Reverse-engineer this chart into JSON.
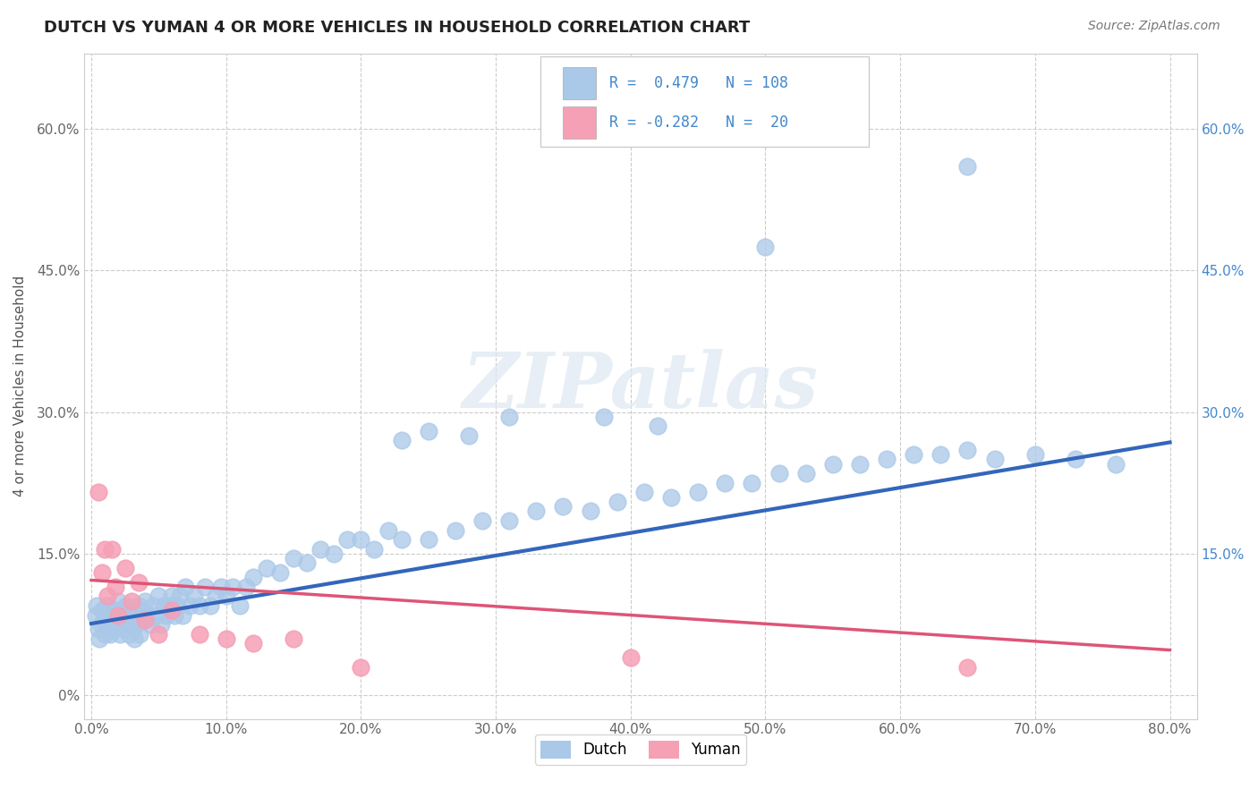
{
  "title": "DUTCH VS YUMAN 4 OR MORE VEHICLES IN HOUSEHOLD CORRELATION CHART",
  "source": "Source: ZipAtlas.com",
  "ylabel": "4 or more Vehicles in Household",
  "xlim": [
    -0.005,
    0.82
  ],
  "ylim": [
    -0.025,
    0.68
  ],
  "xticks": [
    0.0,
    0.1,
    0.2,
    0.3,
    0.4,
    0.5,
    0.6,
    0.7,
    0.8
  ],
  "xticklabels": [
    "0.0%",
    "10.0%",
    "20.0%",
    "30.0%",
    "40.0%",
    "50.0%",
    "60.0%",
    "70.0%",
    "80.0%"
  ],
  "yticks": [
    0.0,
    0.15,
    0.3,
    0.45,
    0.6
  ],
  "yticklabels": [
    "0%",
    "15.0%",
    "30.0%",
    "45.0%",
    "60.0%"
  ],
  "y_right_labels": [
    "",
    "15.0%",
    "30.0%",
    "45.0%",
    "60.0%"
  ],
  "dutch_color": "#aac8e8",
  "yuman_color": "#f5a0b5",
  "dutch_line_color": "#3366bb",
  "yuman_line_color": "#dd5577",
  "dutch_R": 0.479,
  "dutch_N": 108,
  "yuman_R": -0.282,
  "yuman_N": 20,
  "legend_color": "#4488cc",
  "background_color": "#ffffff",
  "grid_color": "#cccccc",
  "watermark_text": "ZIPatlas",
  "dutch_line_x0": 0.0,
  "dutch_line_y0": 0.076,
  "dutch_line_x1": 0.8,
  "dutch_line_y1": 0.268,
  "yuman_line_x0": 0.0,
  "yuman_line_y0": 0.122,
  "yuman_line_x1": 0.8,
  "yuman_line_y1": 0.048,
  "dutch_x": [
    0.003,
    0.004,
    0.005,
    0.006,
    0.007,
    0.008,
    0.009,
    0.01,
    0.011,
    0.012,
    0.013,
    0.014,
    0.015,
    0.016,
    0.017,
    0.018,
    0.019,
    0.02,
    0.021,
    0.022,
    0.023,
    0.024,
    0.025,
    0.026,
    0.027,
    0.028,
    0.029,
    0.03,
    0.031,
    0.032,
    0.033,
    0.034,
    0.035,
    0.036,
    0.037,
    0.038,
    0.04,
    0.042,
    0.044,
    0.046,
    0.048,
    0.05,
    0.052,
    0.054,
    0.056,
    0.058,
    0.06,
    0.062,
    0.064,
    0.066,
    0.068,
    0.07,
    0.073,
    0.076,
    0.08,
    0.084,
    0.088,
    0.092,
    0.096,
    0.1,
    0.105,
    0.11,
    0.115,
    0.12,
    0.13,
    0.14,
    0.15,
    0.16,
    0.17,
    0.18,
    0.19,
    0.2,
    0.21,
    0.22,
    0.23,
    0.25,
    0.27,
    0.29,
    0.31,
    0.33,
    0.35,
    0.37,
    0.39,
    0.41,
    0.43,
    0.45,
    0.47,
    0.49,
    0.51,
    0.53,
    0.55,
    0.57,
    0.59,
    0.61,
    0.63,
    0.65,
    0.67,
    0.7,
    0.73,
    0.76,
    0.5,
    0.65,
    0.38,
    0.42,
    0.28,
    0.31,
    0.25,
    0.23
  ],
  "dutch_y": [
    0.085,
    0.095,
    0.07,
    0.06,
    0.075,
    0.09,
    0.08,
    0.065,
    0.095,
    0.085,
    0.075,
    0.065,
    0.08,
    0.07,
    0.09,
    0.075,
    0.085,
    0.1,
    0.065,
    0.09,
    0.08,
    0.07,
    0.085,
    0.095,
    0.075,
    0.065,
    0.08,
    0.09,
    0.07,
    0.06,
    0.075,
    0.085,
    0.095,
    0.065,
    0.08,
    0.09,
    0.1,
    0.085,
    0.075,
    0.095,
    0.085,
    0.105,
    0.075,
    0.095,
    0.085,
    0.095,
    0.105,
    0.085,
    0.095,
    0.105,
    0.085,
    0.115,
    0.095,
    0.105,
    0.095,
    0.115,
    0.095,
    0.105,
    0.115,
    0.105,
    0.115,
    0.095,
    0.115,
    0.125,
    0.135,
    0.13,
    0.145,
    0.14,
    0.155,
    0.15,
    0.165,
    0.165,
    0.155,
    0.175,
    0.165,
    0.165,
    0.175,
    0.185,
    0.185,
    0.195,
    0.2,
    0.195,
    0.205,
    0.215,
    0.21,
    0.215,
    0.225,
    0.225,
    0.235,
    0.235,
    0.245,
    0.245,
    0.25,
    0.255,
    0.255,
    0.26,
    0.25,
    0.255,
    0.25,
    0.245,
    0.475,
    0.56,
    0.295,
    0.285,
    0.275,
    0.295,
    0.28,
    0.27
  ],
  "yuman_x": [
    0.005,
    0.008,
    0.01,
    0.012,
    0.015,
    0.018,
    0.02,
    0.025,
    0.03,
    0.035,
    0.04,
    0.05,
    0.06,
    0.08,
    0.1,
    0.12,
    0.15,
    0.2,
    0.4,
    0.65
  ],
  "yuman_y": [
    0.215,
    0.13,
    0.155,
    0.105,
    0.155,
    0.115,
    0.085,
    0.135,
    0.1,
    0.12,
    0.08,
    0.065,
    0.09,
    0.065,
    0.06,
    0.055,
    0.06,
    0.03,
    0.04,
    0.03
  ]
}
